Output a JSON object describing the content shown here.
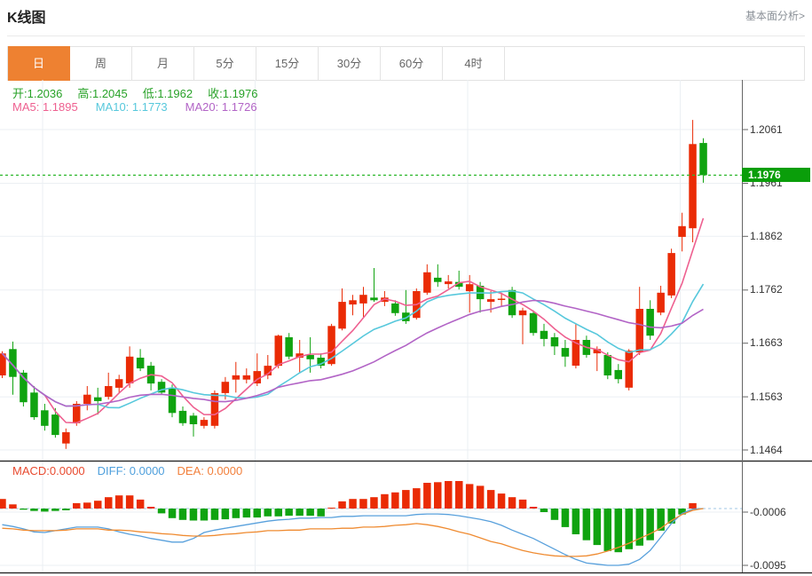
{
  "header": {
    "title": "K线图",
    "link": "基本面分析>"
  },
  "tabs": {
    "items": [
      "日",
      "周",
      "月",
      "5分",
      "15分",
      "30分",
      "60分",
      "4时"
    ],
    "selected": "日"
  },
  "info": {
    "ohlc": [
      {
        "text": "开:1.2036"
      },
      {
        "text": "高:1.2045"
      },
      {
        "text": "低:1.1962"
      },
      {
        "text": "收:1.1976"
      }
    ],
    "ma": [
      {
        "text": "MA5: 1.1895",
        "color": "#ee6090"
      },
      {
        "text": "MA10: 1.1773",
        "color": "#57c8dc"
      },
      {
        "text": "MA20: 1.1726",
        "color": "#b264c6"
      }
    ],
    "macd": [
      {
        "text": "MACD:0.0000",
        "color": "#e84a2f"
      },
      {
        "text": "DIFF: 0.0000",
        "color": "#4e9fdc"
      },
      {
        "text": "DEA: 0.0000",
        "color": "#f2803c"
      }
    ]
  },
  "price_axis": {
    "ticks": [
      "1.2061",
      "1.1961",
      "1.1862",
      "1.1762",
      "1.1663",
      "1.1563",
      "1.1464"
    ],
    "current": "1.1976"
  },
  "macd_axis": {
    "ticks": [
      "-0.0006",
      "-0.0095"
    ]
  },
  "colors": {
    "up": "#ea2b05",
    "down": "#10a310",
    "badge": "#0a9e0a",
    "price_line": "#2eb82e",
    "ma5": "#ee6090",
    "ma10": "#57c8dc",
    "ma20": "#b264c6",
    "diff": "#58a0dc",
    "dea": "#ef8b31",
    "grid": "#ebeff3",
    "axis": "#666666",
    "zero_line": "#b5d2ea",
    "separator": "#1a1a1a",
    "tab_active_bg": "#ee8131",
    "ohlc_text": "#28a228"
  },
  "chart_data": {
    "type": "candlestick",
    "title": "K线图",
    "period": "日",
    "price_ticks": [
      1.2061,
      1.1961,
      1.1862,
      1.1762,
      1.1663,
      1.1563,
      1.1464
    ],
    "current_price": 1.1976,
    "last_bar": {
      "open": 1.2036,
      "high": 1.2045,
      "low": 1.1962,
      "close": 1.1976
    },
    "ma_values": {
      "ma5": 1.1895,
      "ma10": 1.1773,
      "ma20": 1.1726
    },
    "candles": [
      [
        1.1603,
        1.1648,
        1.1598,
        1.1644
      ],
      [
        1.1652,
        1.1666,
        1.1567,
        1.16
      ],
      [
        1.1608,
        1.1613,
        1.1545,
        1.1553
      ],
      [
        1.1571,
        1.1583,
        1.152,
        1.1525
      ],
      [
        1.1538,
        1.155,
        1.15,
        1.1509
      ],
      [
        1.153,
        1.1542,
        1.1487,
        1.1492
      ],
      [
        1.1476,
        1.1504,
        1.1466,
        1.1497
      ],
      [
        1.1514,
        1.1555,
        1.1509,
        1.155
      ],
      [
        1.155,
        1.1583,
        1.1538,
        1.1567
      ],
      [
        1.1562,
        1.158,
        1.153,
        1.1555
      ],
      [
        1.1563,
        1.1608,
        1.1558,
        1.1583
      ],
      [
        1.158,
        1.1604,
        1.1571,
        1.1596
      ],
      [
        1.1588,
        1.1657,
        1.158,
        1.1638
      ],
      [
        1.1636,
        1.1652,
        1.1611,
        1.1616
      ],
      [
        1.1621,
        1.1628,
        1.1575,
        1.1588
      ],
      [
        1.1591,
        1.1596,
        1.1567,
        1.1571
      ],
      [
        1.158,
        1.1586,
        1.1525,
        1.1533
      ],
      [
        1.1537,
        1.1545,
        1.1509,
        1.1514
      ],
      [
        1.1528,
        1.1533,
        1.1489,
        1.1512
      ],
      [
        1.1509,
        1.1525,
        1.1504,
        1.152
      ],
      [
        1.1509,
        1.1575,
        1.1504,
        1.157
      ],
      [
        1.157,
        1.16,
        1.1558,
        1.1591
      ],
      [
        1.1595,
        1.1628,
        1.1571,
        1.1603
      ],
      [
        1.1595,
        1.1616,
        1.1588,
        1.1603
      ],
      [
        1.1588,
        1.1644,
        1.1583,
        1.1611
      ],
      [
        1.1603,
        1.1641,
        1.1596,
        1.1621
      ],
      [
        1.1621,
        1.1679,
        1.1616,
        1.1677
      ],
      [
        1.1674,
        1.1682,
        1.1633,
        1.1638
      ],
      [
        1.1636,
        1.1669,
        1.1608,
        1.1644
      ],
      [
        1.1641,
        1.1674,
        1.1608,
        1.1633
      ],
      [
        1.1636,
        1.1644,
        1.1616,
        1.1621
      ],
      [
        1.1624,
        1.1699,
        1.1621,
        1.1695
      ],
      [
        1.169,
        1.1765,
        1.1687,
        1.174
      ],
      [
        1.1735,
        1.1753,
        1.1715,
        1.1743
      ],
      [
        1.1737,
        1.1768,
        1.1712,
        1.1753
      ],
      [
        1.1748,
        1.1803,
        1.174,
        1.1743
      ],
      [
        1.174,
        1.176,
        1.1732,
        1.1748
      ],
      [
        1.1737,
        1.1743,
        1.1714,
        1.1719
      ],
      [
        1.172,
        1.1762,
        1.1699,
        1.1704
      ],
      [
        1.171,
        1.1765,
        1.1707,
        1.176
      ],
      [
        1.1757,
        1.181,
        1.1753,
        1.1795
      ],
      [
        1.1785,
        1.181,
        1.1768,
        1.1777
      ],
      [
        1.1773,
        1.179,
        1.1765,
        1.1778
      ],
      [
        1.1777,
        1.1798,
        1.1763,
        1.1768
      ],
      [
        1.176,
        1.179,
        1.172,
        1.1773
      ],
      [
        1.177,
        1.1777,
        1.172,
        1.1745
      ],
      [
        1.174,
        1.176,
        1.172,
        1.1745
      ],
      [
        1.1744,
        1.1757,
        1.1732,
        1.1746
      ],
      [
        1.1762,
        1.1768,
        1.171,
        1.1715
      ],
      [
        1.1715,
        1.1729,
        1.1661,
        1.1724
      ],
      [
        1.1719,
        1.1724,
        1.1677,
        1.1682
      ],
      [
        1.1686,
        1.1699,
        1.1657,
        1.1671
      ],
      [
        1.1674,
        1.1682,
        1.1641,
        1.1657
      ],
      [
        1.1654,
        1.1669,
        1.1619,
        1.1638
      ],
      [
        1.1621,
        1.1699,
        1.1616,
        1.1669
      ],
      [
        1.1669,
        1.1677,
        1.1636,
        1.1641
      ],
      [
        1.1644,
        1.1657,
        1.1611,
        1.1652
      ],
      [
        1.1641,
        1.1646,
        1.1596,
        1.1603
      ],
      [
        1.1613,
        1.1624,
        1.1588,
        1.1596
      ],
      [
        1.158,
        1.1652,
        1.1575,
        1.1649
      ],
      [
        1.1646,
        1.1768,
        1.1641,
        1.1727
      ],
      [
        1.1727,
        1.1743,
        1.1669,
        1.1677
      ],
      [
        1.172,
        1.177,
        1.1715,
        1.1757
      ],
      [
        1.1752,
        1.1839,
        1.1747,
        1.1831
      ],
      [
        1.1861,
        1.1906,
        1.1834,
        1.1881
      ],
      [
        1.1877,
        1.2079,
        1.1851,
        1.2034
      ],
      [
        1.2036,
        1.2045,
        1.1962,
        1.1976
      ]
    ],
    "macd": {
      "axis_ticks": [
        -0.0006,
        -0.0095
      ],
      "hist": [
        0.0016,
        0.0007,
        -0.0002,
        -0.0004,
        -0.0005,
        -0.0004,
        -0.0003,
        0.0009,
        0.001,
        0.0013,
        0.0019,
        0.0022,
        0.0022,
        0.0015,
        0.0003,
        -0.0008,
        -0.0016,
        -0.0019,
        -0.002,
        -0.002,
        -0.0019,
        -0.0018,
        -0.0016,
        -0.0015,
        -0.0015,
        -0.0013,
        -0.0013,
        -0.0012,
        -0.0012,
        -0.0012,
        -0.0013,
        0.0001,
        0.0012,
        0.0016,
        0.0016,
        0.0019,
        0.0024,
        0.0027,
        0.0031,
        0.0034,
        0.0043,
        0.0044,
        0.0046,
        0.0046,
        0.0041,
        0.0038,
        0.0031,
        0.0025,
        0.0019,
        0.0015,
        0.0003,
        -0.0006,
        -0.0019,
        -0.0031,
        -0.0043,
        -0.0053,
        -0.0061,
        -0.0071,
        -0.0073,
        -0.0068,
        -0.0062,
        -0.0053,
        -0.0037,
        -0.0025,
        -0.001,
        0.0009,
        0.0
      ],
      "diff": [
        -0.0027,
        -0.003,
        -0.0034,
        -0.0039,
        -0.004,
        -0.0037,
        -0.0034,
        -0.0031,
        -0.0031,
        -0.0031,
        -0.0034,
        -0.0039,
        -0.0043,
        -0.0046,
        -0.005,
        -0.0053,
        -0.0056,
        -0.0056,
        -0.005,
        -0.004,
        -0.0036,
        -0.0033,
        -0.003,
        -0.0027,
        -0.0024,
        -0.0021,
        -0.0019,
        -0.0018,
        -0.0016,
        -0.0016,
        -0.0015,
        -0.0015,
        -0.0013,
        -0.0013,
        -0.0012,
        -0.0012,
        -0.0012,
        -0.0012,
        -0.0012,
        -0.001,
        -0.0009,
        -0.0009,
        -0.001,
        -0.0012,
        -0.0015,
        -0.0018,
        -0.0022,
        -0.0028,
        -0.0036,
        -0.0043,
        -0.005,
        -0.0059,
        -0.0068,
        -0.0077,
        -0.0085,
        -0.0091,
        -0.0093,
        -0.0095,
        -0.0095,
        -0.0093,
        -0.0085,
        -0.007,
        -0.0048,
        -0.0025,
        -0.0008,
        -0.0001,
        0.0
      ],
      "dea": [
        -0.0033,
        -0.0034,
        -0.0036,
        -0.0037,
        -0.0037,
        -0.0037,
        -0.0036,
        -0.0034,
        -0.0034,
        -0.0034,
        -0.0036,
        -0.0036,
        -0.0037,
        -0.0039,
        -0.004,
        -0.0042,
        -0.0043,
        -0.0045,
        -0.0046,
        -0.0046,
        -0.0045,
        -0.0043,
        -0.0042,
        -0.004,
        -0.0039,
        -0.0037,
        -0.0037,
        -0.0036,
        -0.0036,
        -0.0034,
        -0.0034,
        -0.0034,
        -0.0033,
        -0.0033,
        -0.0031,
        -0.0031,
        -0.003,
        -0.0028,
        -0.0027,
        -0.0025,
        -0.0027,
        -0.003,
        -0.0034,
        -0.0039,
        -0.0043,
        -0.0049,
        -0.0055,
        -0.0059,
        -0.0065,
        -0.007,
        -0.0074,
        -0.0077,
        -0.0079,
        -0.008,
        -0.008,
        -0.0079,
        -0.0076,
        -0.0071,
        -0.0065,
        -0.0058,
        -0.005,
        -0.0042,
        -0.0033,
        -0.002,
        -0.001,
        -0.0003,
        0.0
      ]
    }
  }
}
